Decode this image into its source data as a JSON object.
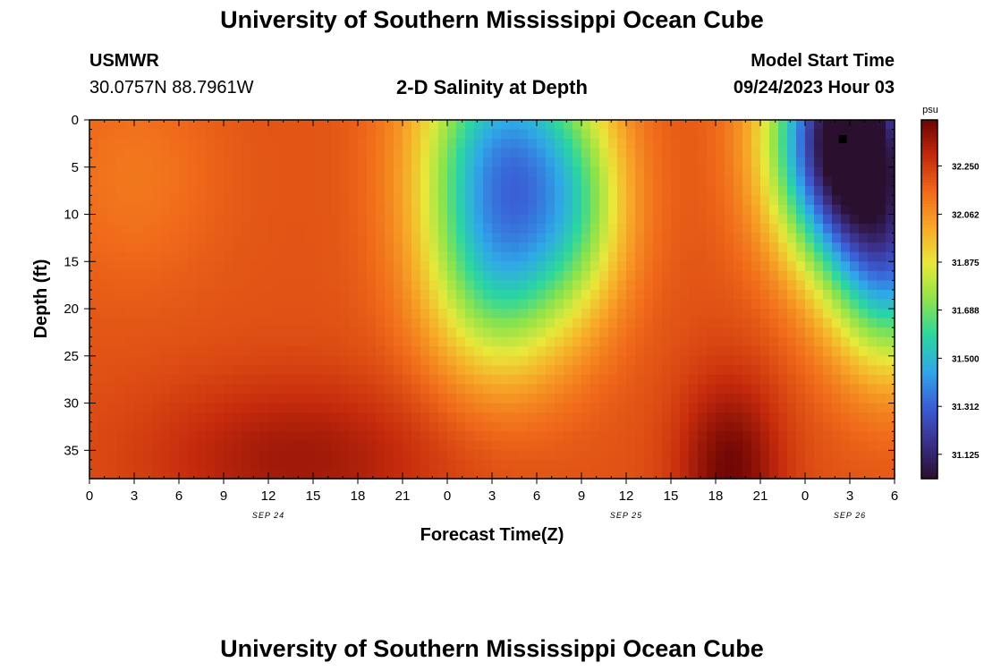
{
  "page": {
    "title": "University of Southern Mississippi Ocean Cube",
    "footer_title": "University of Southern Mississippi Ocean Cube",
    "station": "USMWR",
    "coords": "30.0757N  88.7961W",
    "plot_title": "2-D Salinity at Depth",
    "model_start_label": "Model Start Time",
    "model_start_value": "09/24/2023 Hour 03"
  },
  "colors": {
    "colormap": [
      "#2a0f2e",
      "#3b2f8a",
      "#3a5fd6",
      "#2fa8e8",
      "#2bd6a0",
      "#8fe34a",
      "#e8e83a",
      "#f7a928",
      "#f06a1a",
      "#c52a0c",
      "#6b0404"
    ]
  },
  "chart_data": {
    "type": "heatmap",
    "title": "2-D Salinity at Depth",
    "xlabel": "Forecast Time(Z)",
    "ylabel": "Depth (ft)",
    "x_ticks": [
      "0",
      "3",
      "6",
      "9",
      "12",
      "15",
      "18",
      "21",
      "0",
      "3",
      "6",
      "9",
      "12",
      "15",
      "18",
      "21",
      "0",
      "3",
      "6"
    ],
    "x_range_hours": [
      0,
      54
    ],
    "y_ticks": [
      "0",
      "5",
      "10",
      "15",
      "20",
      "25",
      "30",
      "35"
    ],
    "y_range_ft": [
      0,
      38
    ],
    "date_labels": [
      {
        "label": "SEP 24",
        "hour": 12
      },
      {
        "label": "SEP 25",
        "hour": 36
      },
      {
        "label": "SEP 26",
        "hour": 51
      }
    ],
    "colorbar": {
      "unit": "psu",
      "min": 31.03,
      "max": 32.43,
      "ticks": [
        "32.250",
        "32.062",
        "31.875",
        "31.688",
        "31.500",
        "31.312",
        "31.125"
      ],
      "tick_values": [
        32.25,
        32.062,
        31.875,
        31.688,
        31.5,
        31.312,
        31.125
      ]
    },
    "field": {
      "base": 32.2,
      "features": [
        {
          "hour": 28,
          "depth": 4,
          "amp": -0.75,
          "sigma_hour": 4.0,
          "sigma_depth": 10.0
        },
        {
          "hour": 27.5,
          "depth": 18,
          "amp": -0.35,
          "sigma_hour": 3.5,
          "sigma_depth": 8.0
        },
        {
          "hour": 33,
          "depth": 10,
          "amp": -0.25,
          "sigma_hour": 2.5,
          "sigma_depth": 8.0
        },
        {
          "hour": 51,
          "depth": 2,
          "amp": -1.3,
          "sigma_hour": 3.5,
          "sigma_depth": 9.0
        },
        {
          "hour": 54,
          "depth": 16,
          "amp": -0.6,
          "sigma_hour": 3.0,
          "sigma_depth": 8.0
        },
        {
          "hour": 14,
          "depth": 36,
          "amp": 0.15,
          "sigma_hour": 7.0,
          "sigma_depth": 6.0
        },
        {
          "hour": 43,
          "depth": 37,
          "amp": 0.22,
          "sigma_hour": 2.5,
          "sigma_depth": 7.0
        },
        {
          "hour": 3,
          "depth": 6,
          "amp": -0.08,
          "sigma_hour": 4.0,
          "sigma_depth": 8.0
        }
      ],
      "marker": {
        "hour": 50.5,
        "depth": 2
      }
    }
  }
}
